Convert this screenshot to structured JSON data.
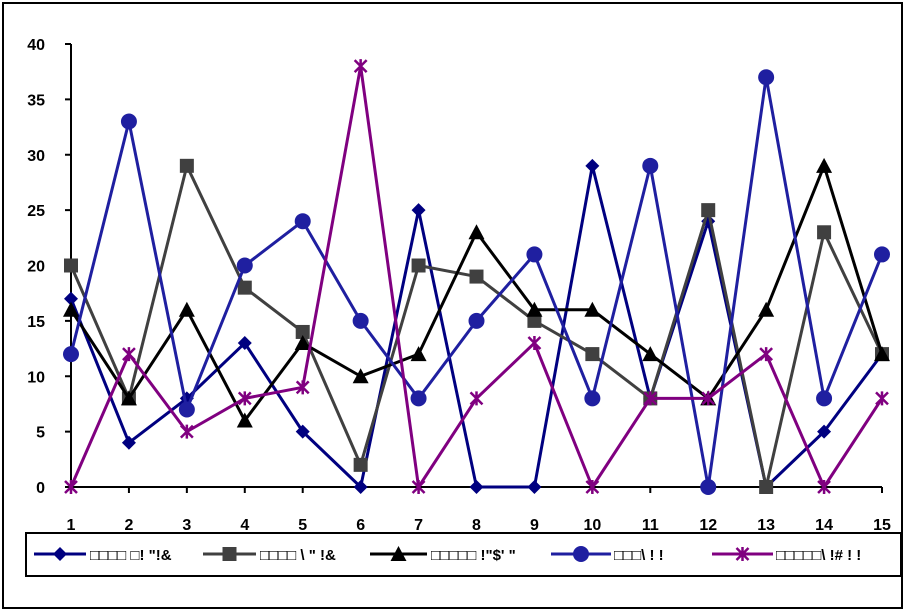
{
  "chart_data": {
    "type": "line",
    "title": "",
    "xlabel": "",
    "ylabel": "",
    "x": [
      1,
      2,
      3,
      4,
      5,
      6,
      7,
      8,
      9,
      10,
      11,
      12,
      13,
      14,
      15
    ],
    "ylim": [
      0,
      40
    ],
    "yticks": [
      0,
      5,
      10,
      15,
      20,
      25,
      30,
      35,
      40
    ],
    "grid": false,
    "legend_position": "bottom",
    "series": [
      {
        "name": "□□□□ □! \"!&",
        "color": "#000080",
        "marker": "diamond",
        "values": [
          17,
          4,
          8,
          13,
          5,
          0,
          25,
          0,
          0,
          29,
          8,
          24,
          0,
          5,
          12
        ]
      },
      {
        "name": "□□□□ \\ \" !&",
        "color": "#404040",
        "marker": "square",
        "values": [
          20,
          8,
          29,
          18,
          14,
          2,
          20,
          19,
          15,
          12,
          8,
          25,
          0,
          23,
          12
        ]
      },
      {
        "name": "□□□□□ !\"$' \"",
        "color": "#000000",
        "marker": "triangle",
        "values": [
          16,
          8,
          16,
          6,
          13,
          10,
          12,
          23,
          16,
          16,
          12,
          8,
          16,
          29,
          12
        ]
      },
      {
        "name": "□□□\\ ! !",
        "color": "#1f1fa0",
        "marker": "circle",
        "values": [
          12,
          33,
          7,
          20,
          24,
          15,
          8,
          15,
          21,
          8,
          29,
          0,
          37,
          8,
          21
        ]
      },
      {
        "name": "□□□□□\\ !# ! !",
        "color": "#800080",
        "marker": "star",
        "values": [
          0,
          12,
          5,
          8,
          9,
          38,
          0,
          8,
          13,
          0,
          8,
          8,
          12,
          0,
          8
        ]
      }
    ]
  }
}
